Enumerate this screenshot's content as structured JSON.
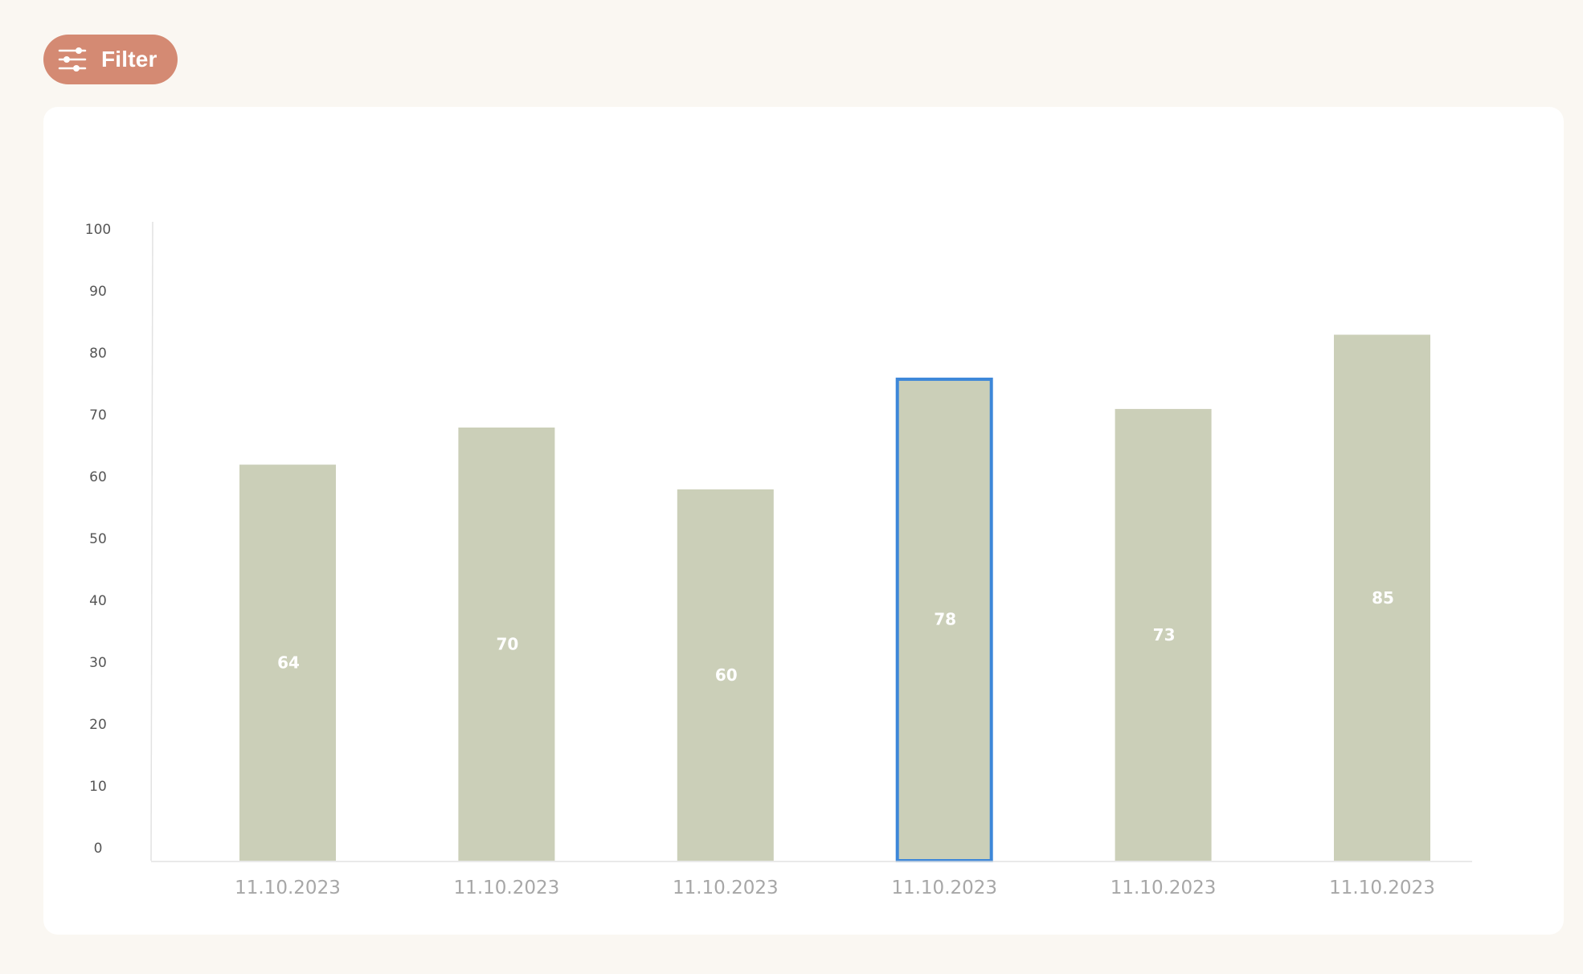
{
  "toolbar": {
    "filter_label": "Filter",
    "filter_icon": "sliders-icon"
  },
  "colors": {
    "accent": "#d48a73",
    "bar": "#cbcfb8",
    "selected_outline": "#3d87d9",
    "background": "#faf7f2"
  },
  "chart_data": {
    "type": "bar",
    "title": "",
    "xlabel": "",
    "ylabel": "",
    "ylim": [
      0,
      100
    ],
    "yticks": [
      0,
      10,
      20,
      30,
      40,
      50,
      60,
      70,
      80,
      90,
      100
    ],
    "categories": [
      "11.10.2023",
      "11.10.2023",
      "11.10.2023",
      "11.10.2023",
      "11.10.2023",
      "11.10.2023"
    ],
    "values": [
      64,
      70,
      60,
      78,
      73,
      85
    ],
    "selected_index": 3,
    "grid": false,
    "legend": "none"
  }
}
